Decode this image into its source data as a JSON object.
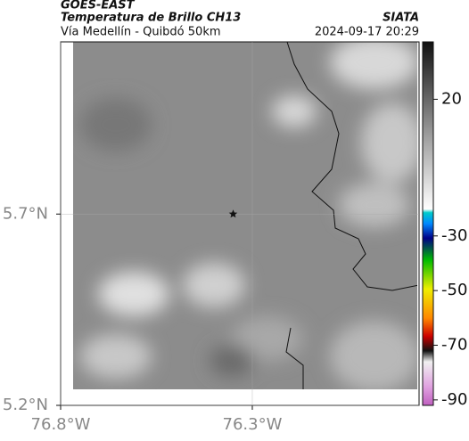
{
  "header": {
    "product": "GOES-EAST",
    "title": "Temperatura de Brillo CH13",
    "subtitle": "Vía Medellín - Quibdó 50km",
    "source": "SIATA",
    "datetime": "2024-09-17 20:29"
  },
  "map": {
    "xlim": [
      -76.8,
      -75.865
    ],
    "ylim": [
      5.2,
      6.15
    ],
    "xticks": [
      {
        "value": -76.8,
        "label": "76.8°W"
      },
      {
        "value": -76.3,
        "label": "76.3°W"
      }
    ],
    "yticks": [
      {
        "value": 5.7,
        "label": "5.7°N"
      },
      {
        "value": 5.2,
        "label": "5.2°N"
      }
    ],
    "marker": [
      -76.35,
      5.7
    ],
    "grid": true
  },
  "colorbar": {
    "lim": [
      -92,
      41
    ],
    "ticks": [
      20,
      -30,
      -50,
      -70,
      -90
    ]
  }
}
